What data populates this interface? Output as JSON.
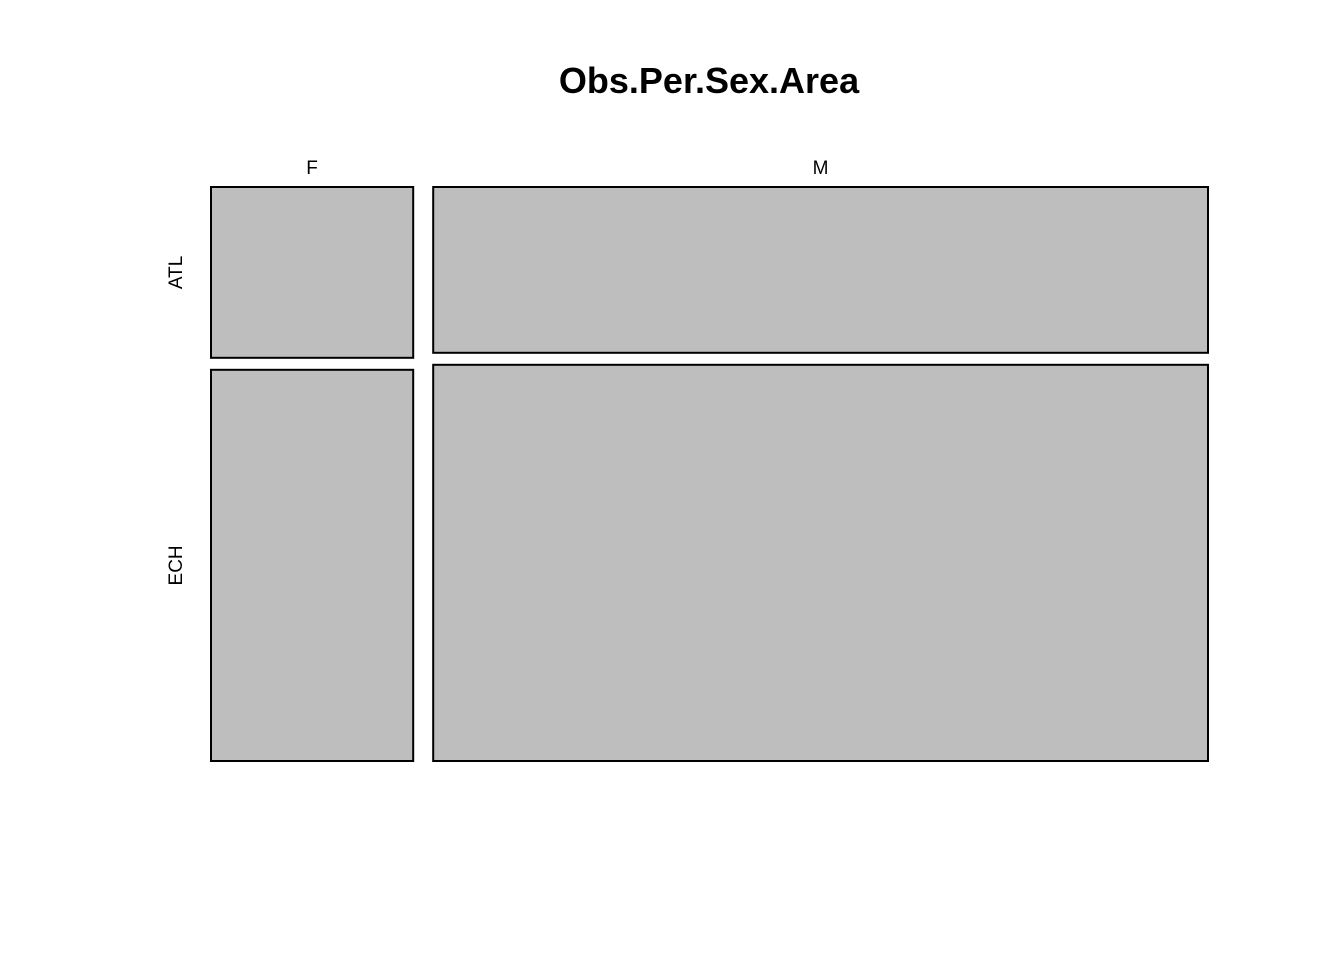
{
  "chart_data": {
    "type": "mosaic",
    "title": "Obs.Per.Sex.Area",
    "x_variable_levels": [
      "F",
      "M"
    ],
    "y_variable_levels": [
      "ATL",
      "ECH"
    ],
    "column_proportions": [
      0.207,
      0.793
    ],
    "within_column_proportions": {
      "F": [
        0.304,
        0.696
      ],
      "M": [
        0.295,
        0.705
      ]
    },
    "cells": [
      {
        "x": "F",
        "y": "ATL",
        "proportion_of_column": 0.304
      },
      {
        "x": "F",
        "y": "ECH",
        "proportion_of_column": 0.696
      },
      {
        "x": "M",
        "y": "ATL",
        "proportion_of_column": 0.295
      },
      {
        "x": "M",
        "y": "ECH",
        "proportion_of_column": 0.705
      }
    ],
    "fill_color": "#bebebe",
    "stroke_color": "#000000",
    "grid": false,
    "legend": "none"
  }
}
